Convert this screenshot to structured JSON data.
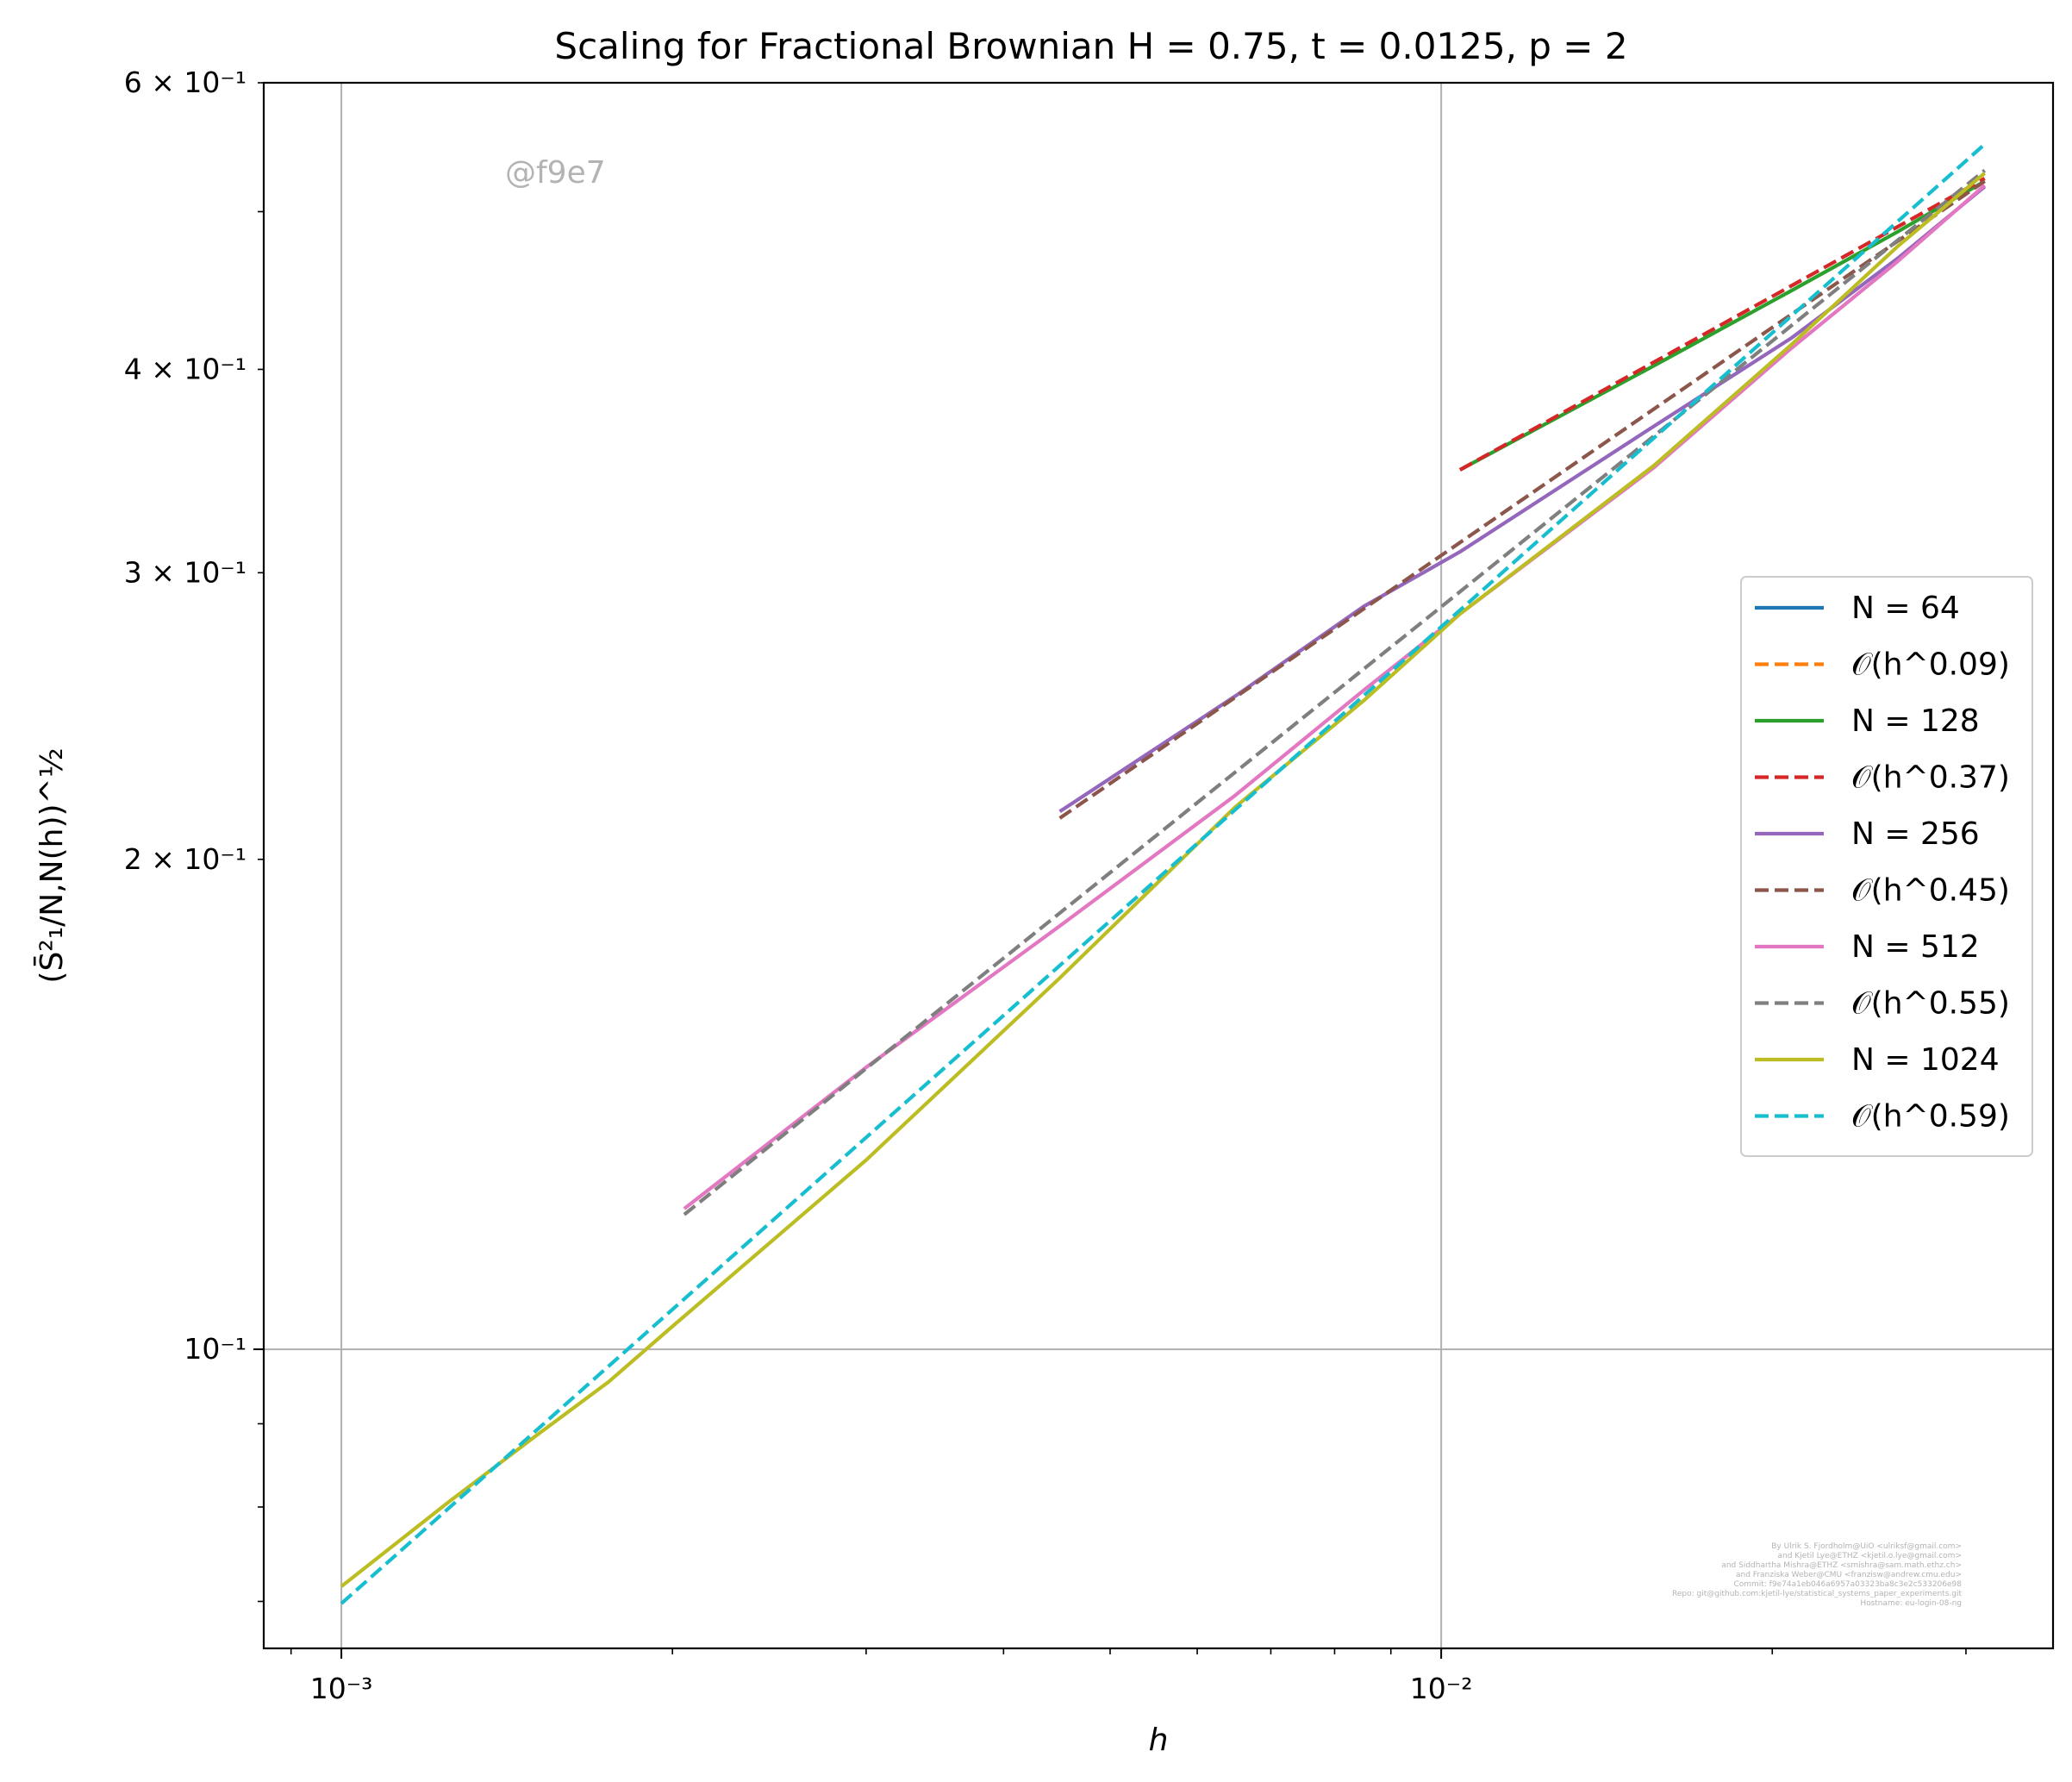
{
  "chart_data": {
    "type": "line",
    "title": "Scaling for Fractional Brownian H = 0.75, t = 0.0125, p = 2",
    "xlabel": "h",
    "ylabel": "(S̄²₁/N,N(h))^½",
    "xscale": "log",
    "yscale": "log",
    "xlim": [
      0.00085,
      0.036
    ],
    "ylim": [
      0.0655,
      0.6
    ],
    "grid": true,
    "legend_position": "center right",
    "x_ticks": [
      {
        "value": 0.001,
        "label": "10⁻³"
      },
      {
        "value": 0.01,
        "label": "10⁻²"
      }
    ],
    "y_ticks": [
      {
        "value": 0.1,
        "label": "10⁻¹"
      },
      {
        "value": 0.2,
        "label": "2 × 10⁻¹"
      },
      {
        "value": 0.3,
        "label": "3 × 10⁻¹"
      },
      {
        "value": 0.4,
        "label": "4 × 10⁻¹"
      },
      {
        "value": 0.6,
        "label": "6 × 10⁻¹"
      }
    ],
    "series": [
      {
        "name": "N = 64",
        "color": "#1f77b4",
        "dash": "solid",
        "points": [
          [
            0.0312,
            0.522
          ]
        ]
      },
      {
        "name": "𝒪(h^0.09)",
        "color": "#ff7f0e",
        "dash": "dashed",
        "points": [
          [
            0.0312,
            0.522
          ]
        ]
      },
      {
        "name": "N = 128",
        "color": "#2ca02c",
        "dash": "solid",
        "points": [
          [
            0.0104,
            0.347
          ],
          [
            0.0156,
            0.402
          ],
          [
            0.0208,
            0.447
          ],
          [
            0.026,
            0.486
          ],
          [
            0.0312,
            0.522
          ]
        ]
      },
      {
        "name": "𝒪(h^0.37)",
        "color": "#d62728",
        "dash": "dashed",
        "points": [
          [
            0.0104,
            0.347
          ],
          [
            0.0312,
            0.524
          ]
        ]
      },
      {
        "name": "N = 256",
        "color": "#9467bd",
        "dash": "solid",
        "points": [
          [
            0.0045,
            0.214
          ],
          [
            0.0065,
            0.252
          ],
          [
            0.0085,
            0.286
          ],
          [
            0.0104,
            0.309
          ],
          [
            0.0156,
            0.369
          ],
          [
            0.0208,
            0.418
          ],
          [
            0.026,
            0.468
          ],
          [
            0.0312,
            0.518
          ]
        ]
      },
      {
        "name": "𝒪(h^0.45)",
        "color": "#8c564b",
        "dash": "dashed",
        "points": [
          [
            0.0045,
            0.212
          ],
          [
            0.0312,
            0.522
          ]
        ]
      },
      {
        "name": "N = 512",
        "color": "#e377c2",
        "dash": "solid",
        "points": [
          [
            0.00205,
            0.122
          ],
          [
            0.003,
            0.149
          ],
          [
            0.0045,
            0.182
          ],
          [
            0.0065,
            0.219
          ],
          [
            0.0085,
            0.254
          ],
          [
            0.0104,
            0.283
          ],
          [
            0.0156,
            0.348
          ],
          [
            0.0208,
            0.412
          ],
          [
            0.026,
            0.466
          ],
          [
            0.0312,
            0.519
          ]
        ]
      },
      {
        "name": "𝒪(h^0.55)",
        "color": "#7f7f7f",
        "dash": "dashed",
        "points": [
          [
            0.00205,
            0.121
          ],
          [
            0.0312,
            0.53
          ]
        ]
      },
      {
        "name": "N = 1024",
        "color": "#bcbd22",
        "dash": "solid",
        "points": [
          [
            0.001,
            0.0715
          ],
          [
            0.00125,
            0.0805
          ],
          [
            0.0015,
            0.0884
          ],
          [
            0.00175,
            0.0955
          ],
          [
            0.002,
            0.1033
          ],
          [
            0.003,
            0.1307
          ],
          [
            0.0045,
            0.1691
          ],
          [
            0.0065,
            0.2154
          ],
          [
            0.0085,
            0.2503
          ],
          [
            0.0104,
            0.283
          ],
          [
            0.0156,
            0.349
          ],
          [
            0.0208,
            0.414
          ],
          [
            0.026,
            0.476
          ],
          [
            0.0312,
            0.528
          ]
        ]
      },
      {
        "name": "𝒪(h^0.59)",
        "color": "#17becf",
        "dash": "dashed",
        "points": [
          [
            0.001,
            0.0698
          ],
          [
            0.0312,
            0.55
          ]
        ]
      }
    ]
  },
  "watermark": "@f9e7",
  "credits": [
    "By Ulrik S. Fjordholm@UiO <ulriksf@gmail.com>",
    "and Kjetil Lye@ETHZ <kjetil.o.lye@gmail.com>",
    "and Siddhartha Mishra@ETHZ <smishra@sam.math.ethz.ch>",
    "and Franziska Weber@CMU <franzisw@andrew.cmu.edu>",
    "Commit: f9e74a1eb046a6957a03323ba8c3e2c533206e98",
    "Repo: git@github.com:kjetil-lye/statistical_systems_paper_experiments.git",
    "Hostname: eu-login-08-ng"
  ]
}
